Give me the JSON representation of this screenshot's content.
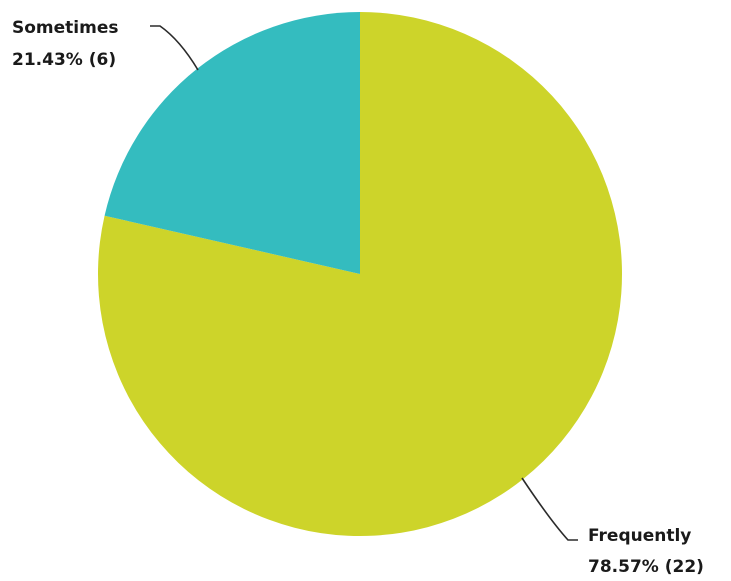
{
  "chart_data": {
    "type": "pie",
    "start_angle_deg": 0,
    "direction": "clockwise",
    "slices": [
      {
        "name": "Frequently",
        "value": 22,
        "percent_label": "78.57% (22)",
        "color": "#cdd42a"
      },
      {
        "name": "Sometimes",
        "value": 6,
        "percent_label": "21.43% (6)",
        "color": "#34bcbf"
      }
    ]
  }
}
